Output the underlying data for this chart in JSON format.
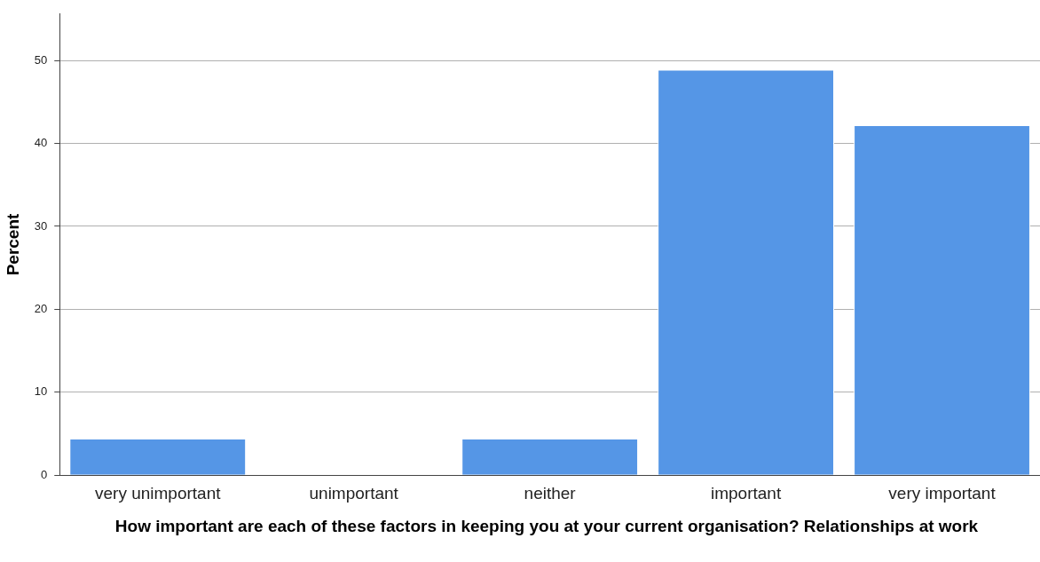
{
  "chart_data": {
    "type": "bar",
    "xlabel": "How important are each of these factors in keeping you at your current organisation? Relationships at work",
    "ylabel": "Percent",
    "categories": [
      "very unimportant",
      "unimportant",
      "neither",
      "important",
      "very important"
    ],
    "values": [
      4.4,
      0,
      4.4,
      48.9,
      42.2
    ],
    "color": "#5596e6",
    "ylim": [
      0,
      55.6
    ],
    "yticks": [
      0,
      10,
      20,
      30,
      40,
      50
    ],
    "grid": "y",
    "legend": false
  }
}
